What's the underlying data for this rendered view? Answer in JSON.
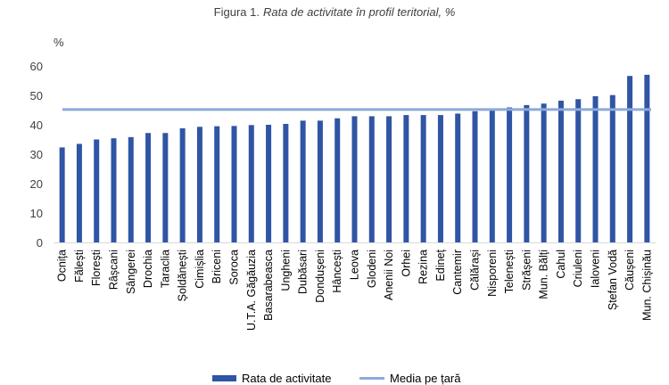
{
  "chart_data": {
    "type": "bar",
    "title_prefix": "Figura 1.",
    "title_main": "Rata de activitate în profil teritorial, %",
    "ylabel": "%",
    "xlabel": "",
    "ylim": [
      0,
      60
    ],
    "yticks": [
      0,
      10,
      20,
      30,
      40,
      50,
      60
    ],
    "grid": false,
    "legend_position": "bottom",
    "categories": [
      "Ocnița",
      "Fălești",
      "Florești",
      "Râșcani",
      "Sângerei",
      "Drochia",
      "Taraclia",
      "Șoldănești",
      "Cimișlia",
      "Briceni",
      "Soroca",
      "U.T.A. Găgăuzia",
      "Basarabeasca",
      "Ungheni",
      "Dubăsari",
      "Dondușeni",
      "Hâncești",
      "Leova",
      "Glodeni",
      "Anenii Noi",
      "Orhei",
      "Rezina",
      "Edineț",
      "Cantemir",
      "Călărași",
      "Nisporeni",
      "Telenești",
      "Strășeni",
      "Mun. Bălți",
      "Cahul",
      "Criuleni",
      "Ialoveni",
      "Ștefan Vodă",
      "Căușeni",
      "Mun. Chișinău"
    ],
    "series": [
      {
        "name": "Rata de activitate",
        "color": "#2f55a4",
        "values": [
          32.3,
          33.5,
          35.0,
          35.4,
          35.8,
          37.2,
          37.2,
          38.8,
          39.3,
          39.5,
          39.6,
          39.9,
          40.0,
          40.3,
          41.4,
          41.4,
          42.2,
          42.9,
          42.9,
          42.9,
          43.3,
          43.3,
          43.3,
          43.8,
          44.6,
          44.9,
          45.9,
          46.7,
          47.2,
          48.2,
          48.7,
          49.7,
          50.1,
          56.6,
          57.0
        ]
      },
      {
        "name": "Media pe țară",
        "color": "#8ea9db",
        "value": 45.2
      }
    ]
  }
}
